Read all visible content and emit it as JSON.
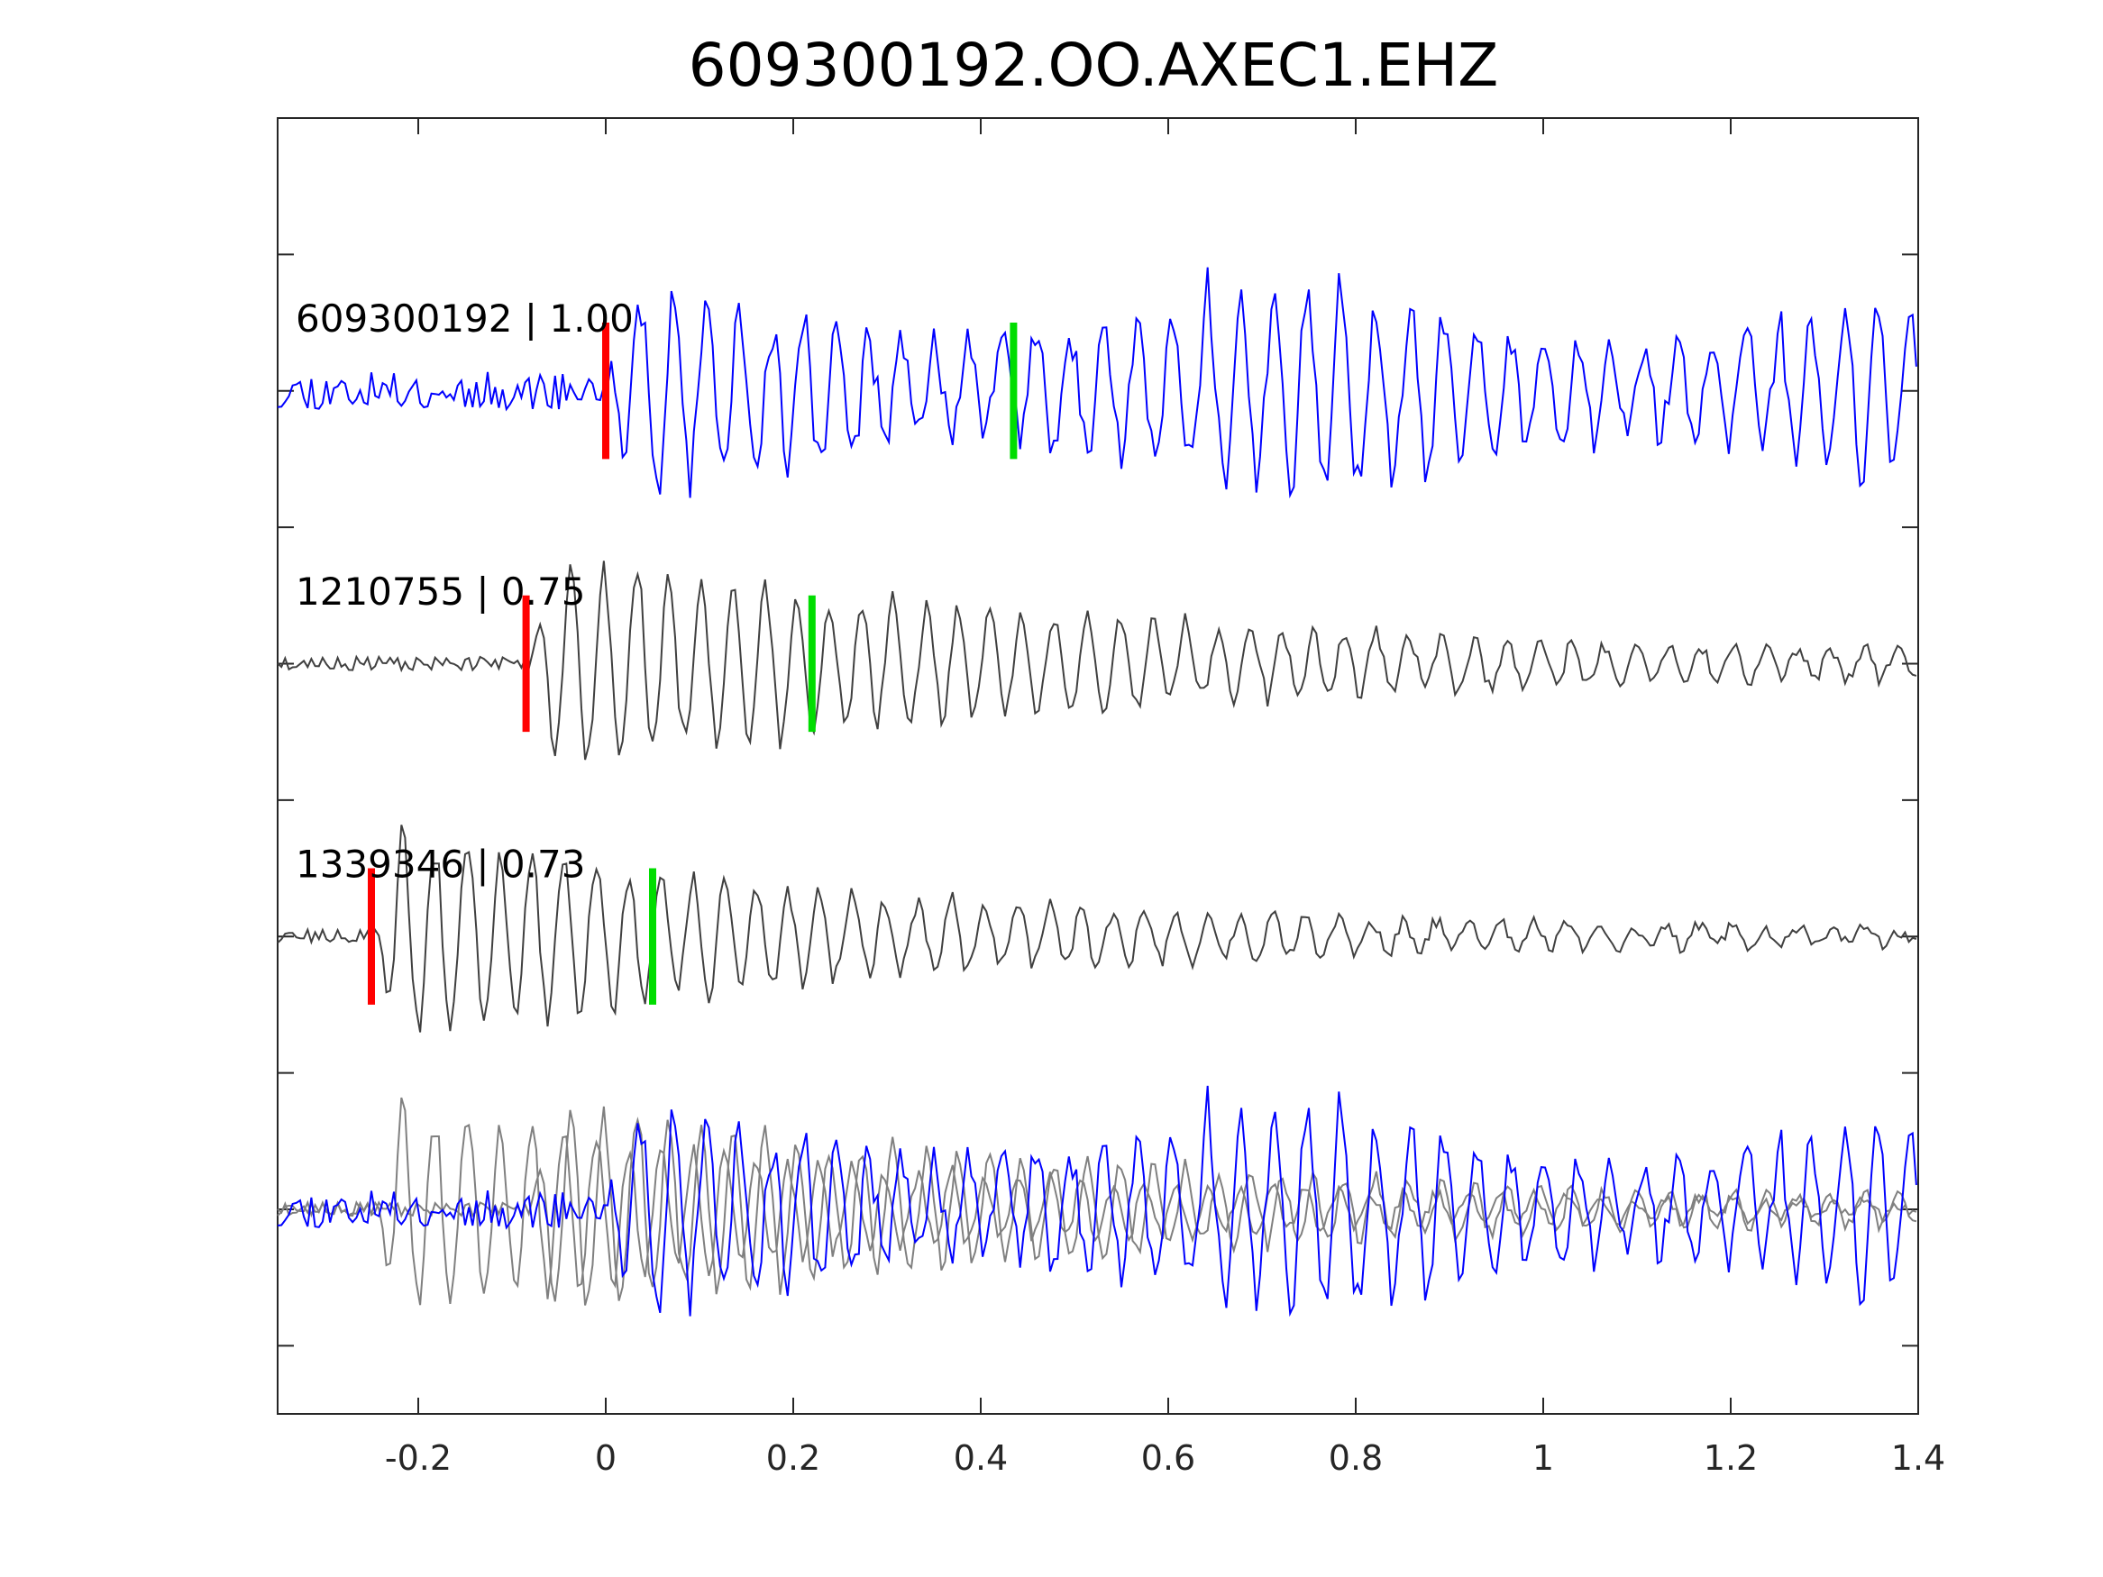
{
  "chart_data": {
    "type": "line",
    "title": "609300192.OO.AXEC1.EHZ",
    "xlabel": "",
    "ylabel": "",
    "xlim": [
      -0.35,
      1.4
    ],
    "xticks": [
      -0.2,
      0,
      0.2,
      0.4,
      0.6,
      0.8,
      1,
      1.2,
      1.4
    ],
    "xtick_labels": [
      "-0.2",
      "0",
      "0.2",
      "0.4",
      "0.6",
      "0.8",
      "1",
      "1.2",
      "1.4"
    ],
    "ylim": [
      0,
      4.75
    ],
    "y_ticks_labeled": false,
    "y_tick_count": 9,
    "grid": false,
    "sample_interval": 0.004,
    "series": [
      {
        "id": "609300192",
        "label": "609300192 | 1.00",
        "color": "#0000ff",
        "baseline": 3.75,
        "onset": 0.0,
        "p_pick": 0.0,
        "s_pick": 0.435,
        "amp": 0.45,
        "noise": 0.07,
        "freq": 28,
        "decay": 0.02,
        "tail": 0.26,
        "seed": 11
      },
      {
        "id": "1210755",
        "label": "1210755 | 0.75",
        "color": "#404040",
        "baseline": 2.75,
        "onset": -0.085,
        "p_pick": -0.085,
        "s_pick": 0.22,
        "amp": 0.46,
        "noise": 0.025,
        "freq": 29,
        "decay": 0.45,
        "tail": 0.03,
        "seed": 23
      },
      {
        "id": "1339346",
        "label": "1339346 | 0.73",
        "color": "#404040",
        "baseline": 1.75,
        "onset": -0.25,
        "p_pick": -0.25,
        "s_pick": 0.05,
        "amp": 0.46,
        "noise": 0.025,
        "freq": 29,
        "decay": 0.55,
        "tail": 0.03,
        "seed": 37
      }
    ],
    "overlay": {
      "baseline": 0.75,
      "gray_color": "#808080",
      "blue_color": "#0000ff"
    },
    "pick_colors": {
      "p": "#ff0000",
      "s": "#00dd00"
    }
  }
}
